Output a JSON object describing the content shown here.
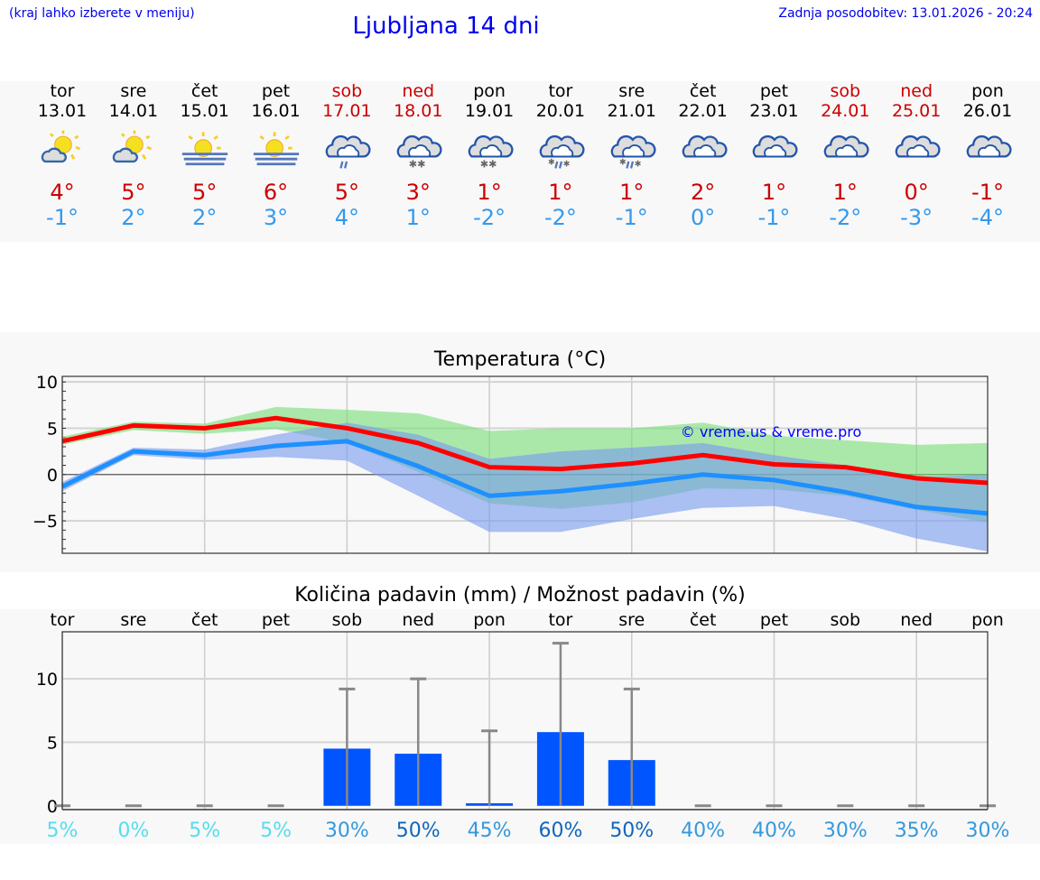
{
  "header": {
    "hint": "(kraj lahko izberete v meniju)",
    "title": "Ljubljana 14 dni",
    "updated": "Zadnja posodobitev: 13.01.2026 - 20:24"
  },
  "days": [
    {
      "name": "tor",
      "date": "13.01",
      "weekend": false,
      "icon": "partly-cloudy",
      "high": "4°",
      "low": "-1°"
    },
    {
      "name": "sre",
      "date": "14.01",
      "weekend": false,
      "icon": "partly-cloudy",
      "high": "5°",
      "low": "2°"
    },
    {
      "name": "čet",
      "date": "15.01",
      "weekend": false,
      "icon": "sun-fog",
      "high": "5°",
      "low": "2°"
    },
    {
      "name": "pet",
      "date": "16.01",
      "weekend": false,
      "icon": "sun-fog",
      "high": "6°",
      "low": "3°"
    },
    {
      "name": "sob",
      "date": "17.01",
      "weekend": true,
      "icon": "cloud-rain",
      "high": "5°",
      "low": "4°"
    },
    {
      "name": "ned",
      "date": "18.01",
      "weekend": true,
      "icon": "cloud-snow",
      "high": "3°",
      "low": "1°"
    },
    {
      "name": "pon",
      "date": "19.01",
      "weekend": false,
      "icon": "cloud-snow",
      "high": "1°",
      "low": "-2°"
    },
    {
      "name": "tor",
      "date": "20.01",
      "weekend": false,
      "icon": "cloud-sleet",
      "high": "1°",
      "low": "-2°"
    },
    {
      "name": "sre",
      "date": "21.01",
      "weekend": false,
      "icon": "cloud-sleet",
      "high": "1°",
      "low": "-1°"
    },
    {
      "name": "čet",
      "date": "22.01",
      "weekend": false,
      "icon": "cloudy",
      "high": "2°",
      "low": "0°"
    },
    {
      "name": "pet",
      "date": "23.01",
      "weekend": false,
      "icon": "cloudy",
      "high": "1°",
      "low": "-1°"
    },
    {
      "name": "sob",
      "date": "24.01",
      "weekend": true,
      "icon": "cloudy",
      "high": "1°",
      "low": "-2°"
    },
    {
      "name": "ned",
      "date": "25.01",
      "weekend": true,
      "icon": "cloudy",
      "high": "0°",
      "low": "-3°"
    },
    {
      "name": "pon",
      "date": "26.01",
      "weekend": false,
      "icon": "cloudy",
      "high": "-1°",
      "low": "-4°"
    }
  ],
  "colors": {
    "high": "#cc0000",
    "low": "#3399ee",
    "max_line": "#ff0000",
    "min_line": "#1e90ff",
    "max_band": "#90e090",
    "min_band": "#7799ee",
    "bar": "#0055ff",
    "errorbar": "#888888",
    "watermark": "#0000ff"
  },
  "chart_data": [
    {
      "type": "line",
      "title": "Temperatura (°C)",
      "ylim": [
        -8.5,
        10.6
      ],
      "yticks": [
        "10",
        "5",
        "0",
        "−5"
      ],
      "ytick_values": [
        10,
        5,
        0,
        -5
      ],
      "grid": true,
      "watermark": "© vreme.us & vreme.pro",
      "series": [
        {
          "role": "max",
          "values": [
            3.6,
            5.3,
            5.0,
            6.1,
            5.0,
            3.4,
            0.8,
            0.6,
            1.2,
            2.1,
            1.1,
            0.8,
            -0.4,
            -0.9
          ],
          "band_upper": [
            4.1,
            5.7,
            5.5,
            7.3,
            7.0,
            6.6,
            4.7,
            5.0,
            5.0,
            5.6,
            4.2,
            3.7,
            3.2,
            3.4
          ],
          "band_lower": [
            3.2,
            4.8,
            4.4,
            4.9,
            3.4,
            0.3,
            -3.1,
            -3.7,
            -3.0,
            -1.5,
            -1.6,
            -2.3,
            -3.8,
            -5.2
          ]
        },
        {
          "role": "min",
          "values": [
            -1.3,
            2.5,
            2.1,
            3.1,
            3.6,
            0.9,
            -2.3,
            -1.8,
            -1.0,
            0.0,
            -0.6,
            -1.9,
            -3.5,
            -4.2
          ],
          "band_upper": [
            -0.8,
            2.9,
            2.7,
            4.3,
            5.6,
            4.3,
            1.7,
            2.5,
            2.9,
            3.4,
            2.1,
            1.0,
            -0.3,
            0.0
          ],
          "band_lower": [
            -1.8,
            2.1,
            1.6,
            1.9,
            1.5,
            -2.3,
            -6.2,
            -6.2,
            -4.8,
            -3.6,
            -3.4,
            -4.8,
            -6.9,
            -8.3
          ]
        }
      ]
    },
    {
      "type": "bar",
      "title": "Količina padavin (mm) / Možnost padavin (%)",
      "categories": [
        "tor",
        "sre",
        "čet",
        "pet",
        "sob",
        "ned",
        "pon",
        "tor",
        "sre",
        "čet",
        "pet",
        "sob",
        "ned",
        "pon"
      ],
      "ylim": [
        -0.3,
        13.7
      ],
      "yticks": [
        "10",
        "5",
        "0"
      ],
      "ytick_values": [
        10,
        5,
        0
      ],
      "grid": true,
      "values": [
        0,
        0,
        0,
        0,
        4.5,
        4.1,
        0.2,
        5.8,
        3.6,
        0,
        0,
        0,
        0,
        0
      ],
      "error_max": [
        0,
        0,
        0,
        0,
        9.2,
        10.0,
        5.9,
        12.8,
        9.2,
        0,
        0,
        0,
        0,
        0
      ],
      "probability": [
        "5%",
        "0%",
        "5%",
        "5%",
        "30%",
        "50%",
        "45%",
        "60%",
        "50%",
        "40%",
        "40%",
        "30%",
        "35%",
        "30%"
      ],
      "probability_colors": [
        "#55ddee",
        "#55ddee",
        "#55ddee",
        "#55ddee",
        "#3399dd",
        "#1166bb",
        "#3399dd",
        "#1166bb",
        "#1166bb",
        "#3399dd",
        "#3399dd",
        "#3399dd",
        "#3399dd",
        "#3399dd"
      ]
    }
  ]
}
